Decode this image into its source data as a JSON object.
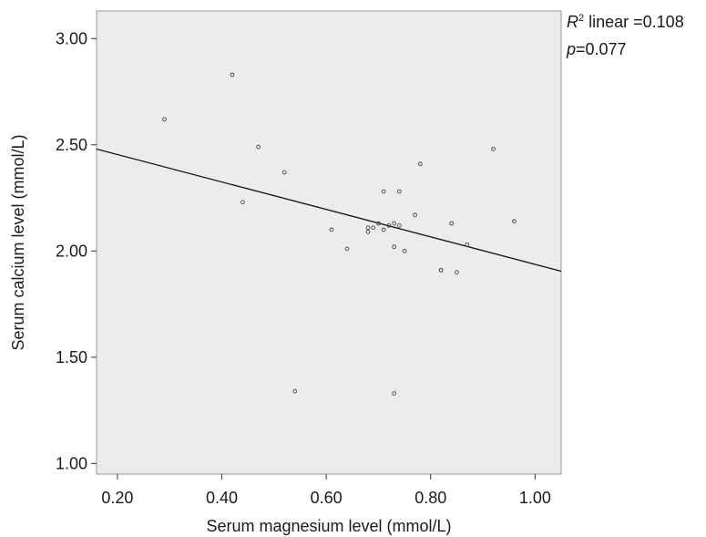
{
  "chart_data": {
    "type": "scatter",
    "title": "",
    "xlabel": "Serum magnesium level (mmol/L)",
    "ylabel": "Serum calcium level (mmol/L)",
    "xlim": [
      0.16,
      1.05
    ],
    "ylim": [
      0.95,
      3.13
    ],
    "x_ticks": [
      0.2,
      0.4,
      0.6,
      0.8,
      1.0
    ],
    "x_tick_labels": [
      "0.20",
      "0.40",
      "0.60",
      "0.80",
      "1.00"
    ],
    "y_ticks": [
      1.0,
      1.5,
      2.0,
      2.5,
      3.0
    ],
    "y_tick_labels": [
      "1.00",
      "1.50",
      "2.00",
      "2.50",
      "3.00"
    ],
    "grid": false,
    "plot_background": "#ececec",
    "point_color": "#444444",
    "line_color": "#111111",
    "points": [
      {
        "x": 0.29,
        "y": 2.62
      },
      {
        "x": 0.42,
        "y": 2.83
      },
      {
        "x": 0.44,
        "y": 2.23
      },
      {
        "x": 0.47,
        "y": 2.49
      },
      {
        "x": 0.52,
        "y": 2.37
      },
      {
        "x": 0.54,
        "y": 1.34
      },
      {
        "x": 0.61,
        "y": 2.1
      },
      {
        "x": 0.64,
        "y": 2.01
      },
      {
        "x": 0.68,
        "y": 2.11
      },
      {
        "x": 0.68,
        "y": 2.09
      },
      {
        "x": 0.69,
        "y": 2.11
      },
      {
        "x": 0.7,
        "y": 2.13
      },
      {
        "x": 0.71,
        "y": 2.28
      },
      {
        "x": 0.71,
        "y": 2.1
      },
      {
        "x": 0.72,
        "y": 2.12
      },
      {
        "x": 0.73,
        "y": 2.13
      },
      {
        "x": 0.73,
        "y": 2.02
      },
      {
        "x": 0.73,
        "y": 1.33
      },
      {
        "x": 0.74,
        "y": 2.28
      },
      {
        "x": 0.74,
        "y": 2.12
      },
      {
        "x": 0.75,
        "y": 2.0
      },
      {
        "x": 0.77,
        "y": 2.17
      },
      {
        "x": 0.78,
        "y": 2.41
      },
      {
        "x": 0.82,
        "y": 1.91
      },
      {
        "x": 0.82,
        "y": 1.91
      },
      {
        "x": 0.84,
        "y": 2.13
      },
      {
        "x": 0.85,
        "y": 1.9
      },
      {
        "x": 0.87,
        "y": 2.03
      },
      {
        "x": 0.92,
        "y": 2.48
      },
      {
        "x": 0.96,
        "y": 2.14
      }
    ],
    "fit_line": {
      "x": [
        0.16,
        1.05
      ],
      "y": [
        2.48,
        1.905
      ]
    },
    "annotations": {
      "r2_symbol": "R",
      "r2_exponent": "2",
      "r2_text": " linear =0.108",
      "p_symbol": "p",
      "p_text": "=0.077"
    }
  }
}
